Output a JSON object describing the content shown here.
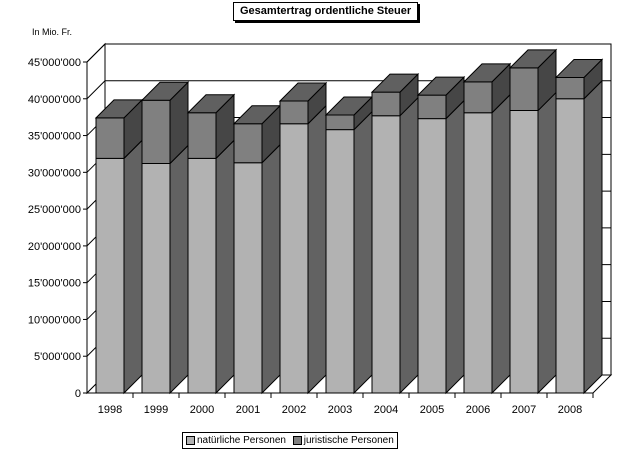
{
  "chart_data": {
    "type": "bar",
    "stacked": true,
    "three_d": true,
    "title": "Gesamtertrag ordentliche Steuer",
    "unit_label": "In Mio. Fr.",
    "categories": [
      "1998",
      "1999",
      "2000",
      "2001",
      "2002",
      "2003",
      "2004",
      "2005",
      "2006",
      "2007",
      "2008"
    ],
    "series": [
      {
        "name": "natürliche Personen",
        "color": "#b2b2b2",
        "values": [
          31900000,
          31200000,
          31900000,
          31300000,
          36600000,
          35800000,
          37700000,
          37300000,
          38100000,
          38400000,
          40000000
        ]
      },
      {
        "name": "juristische Personen",
        "color": "#808080",
        "values": [
          5500000,
          8600000,
          6200000,
          5300000,
          3100000,
          2000000,
          3200000,
          3200000,
          4200000,
          5800000,
          2900000
        ]
      }
    ],
    "ylim": [
      0,
      45000000
    ],
    "yticks": [
      0,
      5000000,
      10000000,
      15000000,
      20000000,
      25000000,
      30000000,
      35000000,
      40000000,
      45000000
    ],
    "ytick_labels": [
      "0",
      "5'000'000",
      "10'000'000",
      "15'000'000",
      "20'000'000",
      "25'000'000",
      "30'000'000",
      "35'000'000",
      "40'000'000",
      "45'000'000"
    ],
    "grid": true,
    "legend_position": "bottom"
  }
}
